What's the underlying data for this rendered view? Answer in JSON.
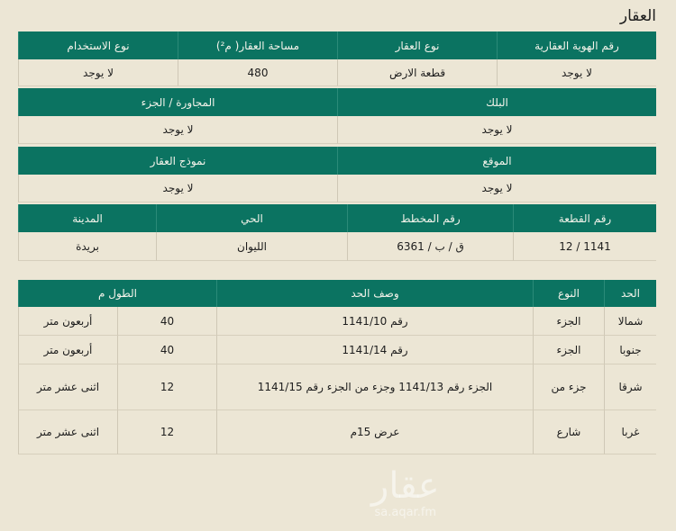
{
  "title": "العقار",
  "colors": {
    "header_bg": "#0b7361",
    "page_bg": "#ece6d5"
  },
  "property": {
    "row1": {
      "headers": [
        "رقم الهوية العقارية",
        "نوع العقار",
        "مساحة العقار( م²)",
        "نوع الاستخدام"
      ],
      "values": [
        "لا يوجد",
        "قطعة الارض",
        "480",
        "لا يوجد"
      ]
    },
    "row2": {
      "headers": [
        "البلك",
        "المجاورة / الجزء"
      ],
      "values": [
        "لا يوجد",
        "لا يوجد"
      ]
    },
    "row3": {
      "headers": [
        "الموقع",
        "نموذج العقار"
      ],
      "values": [
        "لا يوجد",
        "لا يوجد"
      ]
    },
    "row4": {
      "headers": [
        "رقم القطعة",
        "رقم المخطط",
        "الحي",
        "المدينة"
      ],
      "values": [
        "1141 / 12",
        "ق / ب / 6361",
        "الليوان",
        "بريدة"
      ]
    }
  },
  "boundaries": {
    "headers": {
      "side": "الحد",
      "type": "النوع",
      "description": "وصف الحد",
      "length": "الطول م"
    },
    "rows": [
      {
        "side": "شمالا",
        "type": "الجزء",
        "description": "رقم 1141/10",
        "length": "40",
        "length_text": "أربعون متر"
      },
      {
        "side": "جنوبا",
        "type": "الجزء",
        "description": "رقم 1141/14",
        "length": "40",
        "length_text": "أربعون متر"
      },
      {
        "side": "شرقا",
        "type": "جزء من",
        "description": "الجزء رقم 1141/13  وجزء من الجزء رقم 1141/15",
        "length": "12",
        "length_text": "اثنى عشر متر"
      },
      {
        "side": "غربا",
        "type": "شارع",
        "description": "عرض 15م",
        "length": "12",
        "length_text": "اثنى عشر متر"
      }
    ]
  },
  "watermark": {
    "logo": "عقار",
    "site": "sa.aqar.fm"
  }
}
